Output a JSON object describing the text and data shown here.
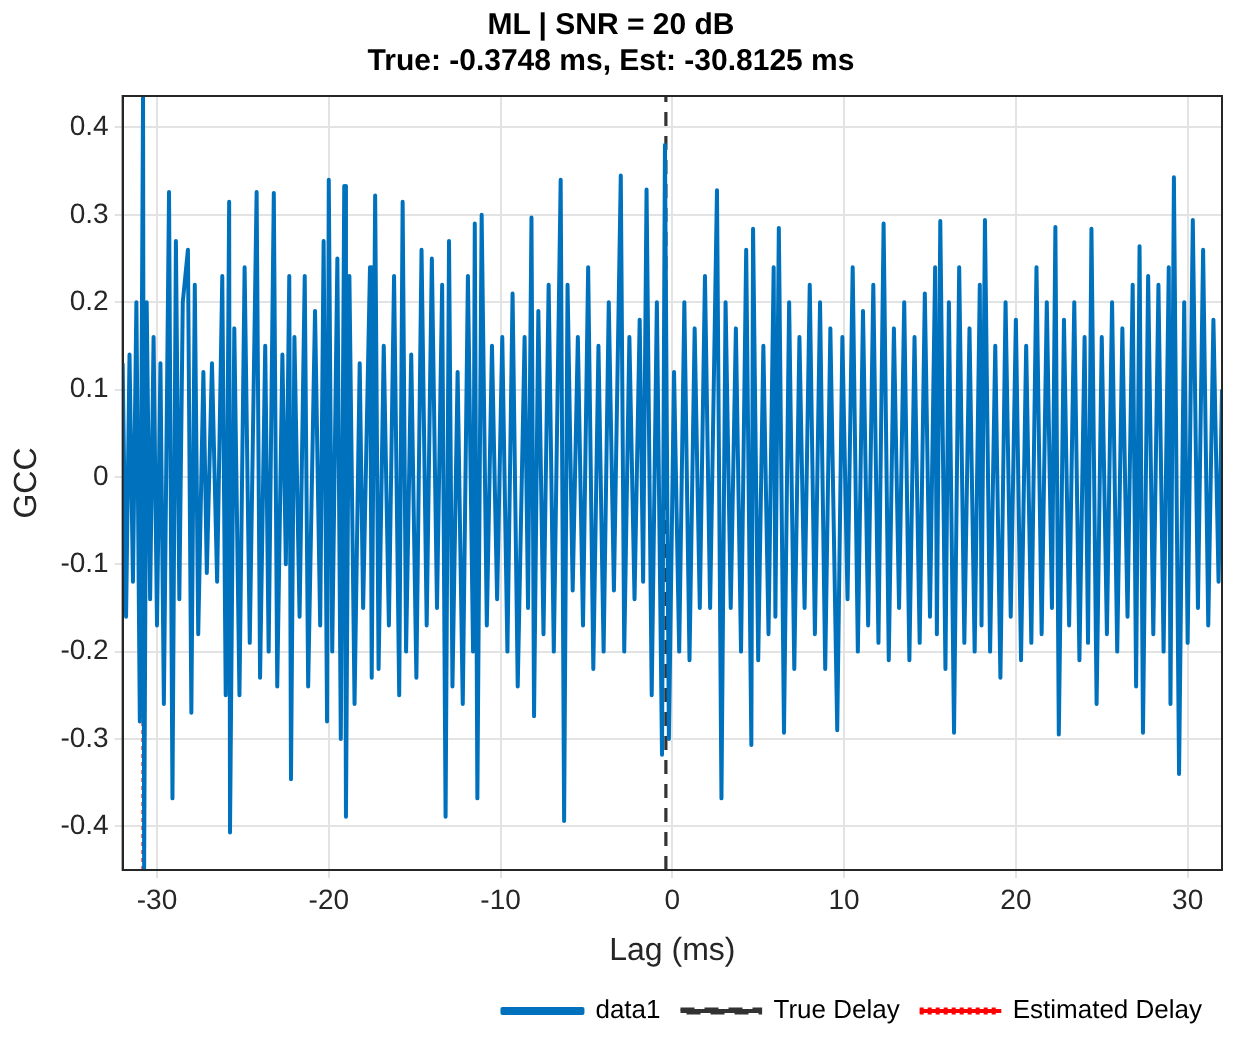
{
  "chart_data": {
    "type": "line",
    "title": "ML | SNR = 20 dB",
    "subtitle": "True: -0.3748 ms, Est: -30.8125 ms",
    "xlabel": "Lag (ms)",
    "ylabel": "GCC",
    "xlim": [
      -32,
      32
    ],
    "xticks": [
      -30,
      -20,
      -10,
      0,
      10,
      20,
      30
    ],
    "ylim": [
      -0.45,
      0.436
    ],
    "yticks": [
      -0.4,
      -0.3,
      -0.2,
      -0.1,
      0,
      0.1,
      0.2,
      0.3,
      0.4
    ],
    "grid": true,
    "legend": "bottom right",
    "line_style": "solid",
    "marker": "none",
    "series": [
      {
        "name": "data1",
        "color": "#0072bd",
        "x": [
          -32,
          -31.8,
          -31.6,
          -31.4,
          -31.2,
          -31.0,
          -30.8125,
          -30.75,
          -30.6,
          -30.4,
          -30.2,
          -30.0,
          -29.8,
          -29.6,
          -29.3,
          -29.1,
          -28.9,
          -28.7,
          -28.5,
          -28.2,
          -28.0,
          -27.8,
          -27.6,
          -27.3,
          -27.1,
          -26.8,
          -26.5,
          -26.2,
          -26.0,
          -25.8,
          -25.75,
          -25.5,
          -25.2,
          -24.9,
          -24.6,
          -24.2,
          -24.0,
          -23.7,
          -23.5,
          -23.2,
          -23.0,
          -22.7,
          -22.5,
          -22.3,
          -22.2,
          -22.0,
          -21.7,
          -21.4,
          -21.2,
          -20.8,
          -20.5,
          -20.3,
          -20.1,
          -20.0,
          -19.8,
          -19.5,
          -19.3,
          -19.1,
          -19.0,
          -18.8,
          -18.5,
          -18.2,
          -18.0,
          -17.6,
          -17.5,
          -17.3,
          -17.1,
          -16.8,
          -16.5,
          -16.2,
          -15.9,
          -15.7,
          -15.5,
          -15.2,
          -14.9,
          -14.6,
          -14.3,
          -14.0,
          -13.7,
          -13.4,
          -13.2,
          -13.0,
          -12.8,
          -12.5,
          -12.2,
          -11.9,
          -11.6,
          -11.5,
          -11.35,
          -11.1,
          -10.8,
          -10.5,
          -10.2,
          -9.9,
          -9.6,
          -9.3,
          -9.0,
          -8.6,
          -8.4,
          -8.2,
          -8.05,
          -7.8,
          -7.5,
          -7.2,
          -6.9,
          -6.5,
          -6.3,
          -6.1,
          -5.8,
          -5.5,
          -5.2,
          -4.9,
          -4.6,
          -4.3,
          -4.0,
          -3.7,
          -3.4,
          -3.0,
          -2.8,
          -2.5,
          -2.2,
          -1.9,
          -1.7,
          -1.5,
          -1.2,
          -0.9,
          -0.6,
          -0.43,
          -0.2,
          0.1,
          0.4,
          0.7,
          1.0,
          1.3,
          1.6,
          1.9,
          2.2,
          2.6,
          2.86,
          3.1,
          3.4,
          3.7,
          4.0,
          4.3,
          4.6,
          4.7,
          5.0,
          5.3,
          5.6,
          5.9,
          6.0,
          6.2,
          6.5,
          6.8,
          7.1,
          7.4,
          7.7,
          8.0,
          8.3,
          8.6,
          8.9,
          9.2,
          9.6,
          9.9,
          10.2,
          10.5,
          10.8,
          11.1,
          11.4,
          11.7,
          12.0,
          12.3,
          12.6,
          12.9,
          13.2,
          13.5,
          13.8,
          14.1,
          14.4,
          14.7,
          15.0,
          15.3,
          15.4,
          15.6,
          15.9,
          16.1,
          16.4,
          16.7,
          17.0,
          17.3,
          17.6,
          17.9,
          18.0,
          18.2,
          18.5,
          18.8,
          19.1,
          19.4,
          19.7,
          20.0,
          20.3,
          20.6,
          20.9,
          21.2,
          21.5,
          21.8,
          22.1,
          22.3,
          22.5,
          22.8,
          23.1,
          23.4,
          23.7,
          24.0,
          24.2,
          24.4,
          24.7,
          25.0,
          25.3,
          25.6,
          25.9,
          26.2,
          26.5,
          26.8,
          27.0,
          27.2,
          27.4,
          27.7,
          28.0,
          28.3,
          28.6,
          28.9,
          29.0,
          29.2,
          29.5,
          29.8,
          30.0,
          30.3,
          30.6,
          30.9,
          31.2,
          31.5,
          31.8,
          32.0
        ],
        "values": [
          0.13,
          -0.16,
          0.14,
          -0.12,
          0.2,
          -0.28,
          0.436,
          -0.45,
          0.2,
          -0.14,
          0.16,
          -0.17,
          0.13,
          -0.26,
          0.326,
          -0.368,
          0.27,
          -0.14,
          0.2,
          0.26,
          -0.27,
          0.22,
          -0.18,
          0.12,
          -0.11,
          0.13,
          -0.12,
          0.23,
          -0.25,
          0.315,
          -0.407,
          0.17,
          -0.25,
          0.24,
          -0.19,
          0.326,
          -0.23,
          0.15,
          -0.2,
          0.325,
          -0.24,
          0.14,
          -0.1,
          0.23,
          -0.346,
          0.16,
          -0.16,
          0.23,
          -0.24,
          0.19,
          -0.17,
          0.27,
          -0.28,
          0.34,
          -0.2,
          0.25,
          -0.3,
          0.333,
          -0.389,
          0.23,
          -0.26,
          0.13,
          -0.15,
          0.24,
          -0.23,
          0.322,
          -0.22,
          0.15,
          -0.17,
          0.23,
          -0.25,
          0.315,
          -0.2,
          0.14,
          -0.23,
          0.26,
          -0.17,
          0.25,
          -0.15,
          0.22,
          -0.389,
          0.27,
          -0.24,
          0.12,
          -0.26,
          0.23,
          -0.2,
          0.29,
          -0.368,
          0.3,
          -0.17,
          0.15,
          -0.14,
          0.16,
          -0.2,
          0.21,
          -0.24,
          0.16,
          -0.15,
          0.297,
          -0.274,
          0.19,
          -0.18,
          0.22,
          -0.2,
          0.34,
          -0.394,
          0.22,
          -0.13,
          0.16,
          -0.17,
          0.24,
          -0.22,
          0.15,
          -0.2,
          0.2,
          -0.13,
          0.345,
          -0.2,
          0.16,
          -0.14,
          0.18,
          -0.12,
          0.329,
          -0.25,
          0.2,
          -0.318,
          0.38,
          -0.3,
          0.12,
          -0.2,
          0.2,
          -0.21,
          0.17,
          -0.15,
          0.23,
          -0.15,
          0.328,
          -0.368,
          0.2,
          -0.15,
          0.17,
          -0.2,
          0.26,
          -0.307,
          0.284,
          -0.21,
          0.15,
          -0.18,
          0.24,
          -0.16,
          0.285,
          -0.293,
          0.2,
          -0.22,
          0.16,
          -0.15,
          0.22,
          -0.18,
          0.2,
          -0.22,
          0.17,
          -0.29,
          0.16,
          -0.14,
          0.24,
          -0.2,
          0.19,
          -0.17,
          0.22,
          -0.19,
          0.29,
          -0.21,
          0.17,
          -0.15,
          0.2,
          -0.21,
          0.16,
          -0.19,
          0.21,
          -0.16,
          0.24,
          -0.18,
          0.293,
          -0.22,
          0.2,
          -0.293,
          0.24,
          -0.19,
          0.17,
          -0.2,
          0.22,
          -0.17,
          0.294,
          -0.2,
          0.15,
          -0.23,
          0.2,
          -0.16,
          0.18,
          -0.21,
          0.15,
          -0.19,
          0.24,
          -0.18,
          0.2,
          -0.15,
          0.286,
          -0.295,
          0.18,
          -0.17,
          0.2,
          -0.21,
          0.16,
          -0.19,
          0.284,
          -0.26,
          0.16,
          -0.18,
          0.2,
          -0.2,
          0.17,
          -0.16,
          0.22,
          -0.24,
          0.264,
          -0.293,
          0.23,
          -0.18,
          0.22,
          -0.2,
          0.24,
          -0.26,
          0.343,
          -0.34,
          0.2,
          -0.19,
          0.294,
          -0.15,
          0.26,
          -0.17,
          0.18,
          -0.12,
          0.1
        ]
      }
    ],
    "ref_lines": [
      {
        "axis": "x",
        "value": -0.3748,
        "label": "True Delay",
        "color": "#333333",
        "line_style": "dashed"
      },
      {
        "axis": "x",
        "value": -30.8125,
        "label": "Estimated Delay",
        "color": "#ff0000",
        "line_style": "dotted"
      }
    ]
  }
}
